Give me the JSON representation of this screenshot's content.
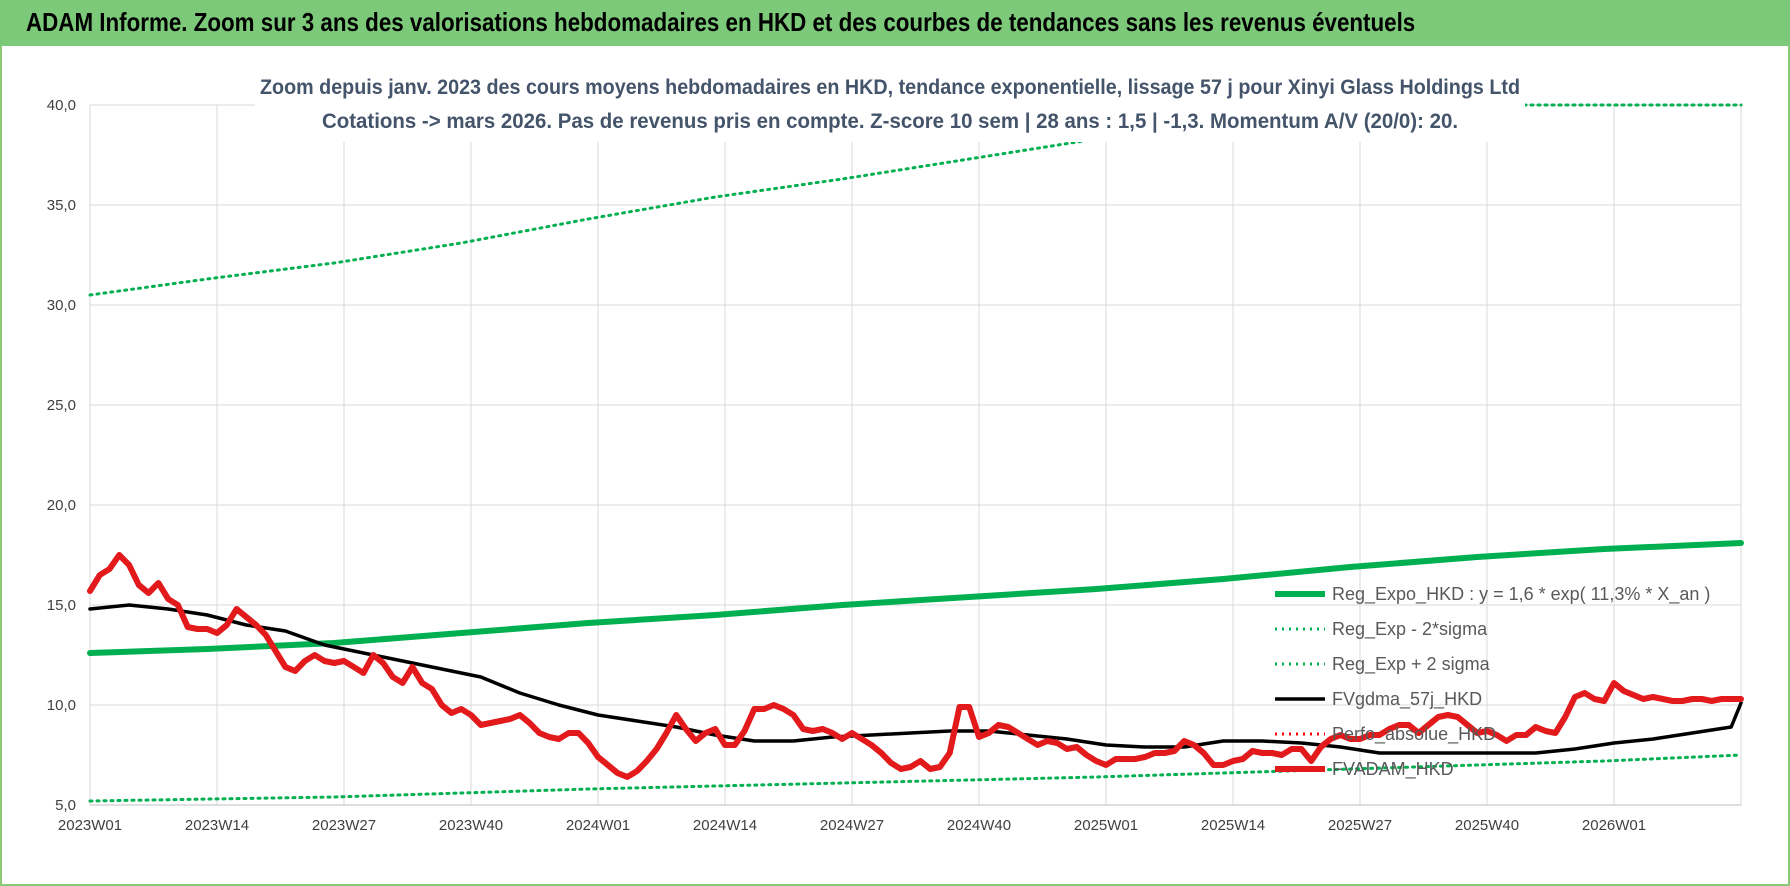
{
  "header": {
    "title": "ADAM Informe. Zoom sur 3 ans des valorisations hebdomadaires en HKD et des courbes de tendances sans les revenus éventuels"
  },
  "colors": {
    "header_bg": "#7dc97a",
    "trend": "#00b050",
    "sigma": "#00b050",
    "fvgdma": "#000000",
    "perfo": "#ff0000",
    "fvadam": "#e31a1c",
    "grid": "#d9d9d9"
  },
  "chart_data": {
    "type": "line",
    "subtitle": [
      "Zoom depuis janv. 2023 des cours moyens hebdomadaires en HKD, tendance exponentielle, lissage 57 j pour Xinyi Glass Holdings Ltd",
      "Cotations -> mars 2026. Pas de revenus pris en compte. Z-score 10 sem | 28 ans : 1,5 | -1,3. Momentum A/V (20/0): 20."
    ],
    "ylim": [
      5,
      40
    ],
    "y_ticks": [
      "5,0",
      "10,0",
      "15,0",
      "20,0",
      "25,0",
      "30,0",
      "35,0",
      "40,0"
    ],
    "x_ticks": [
      "2023W01",
      "2023W14",
      "2023W27",
      "2023W40",
      "2024W01",
      "2024W14",
      "2024W27",
      "2024W40",
      "2025W01",
      "2025W14",
      "2025W27",
      "2025W40",
      "2026W01"
    ],
    "x_count": 170,
    "grid": true,
    "legend_position": "bottom-right",
    "series": [
      {
        "name": "Reg_Expo_HKD : y = 1,6 * exp( 11,3% *  X_an )",
        "color": "#00b050",
        "style": "solid-thick",
        "points": [
          [
            0,
            12.6
          ],
          [
            12,
            12.8
          ],
          [
            25,
            13.1
          ],
          [
            38,
            13.6
          ],
          [
            51,
            14.1
          ],
          [
            64,
            14.5
          ],
          [
            77,
            15.0
          ],
          [
            90,
            15.4
          ],
          [
            103,
            15.8
          ],
          [
            116,
            16.3
          ],
          [
            129,
            16.9
          ],
          [
            142,
            17.4
          ],
          [
            155,
            17.8
          ],
          [
            169,
            18.1
          ]
        ]
      },
      {
        "name": "Reg_Exp - 2*sigma",
        "color": "#00b050",
        "style": "dotted",
        "points": [
          [
            0,
            5.2
          ],
          [
            25,
            5.4
          ],
          [
            51,
            5.8
          ],
          [
            77,
            6.1
          ],
          [
            103,
            6.4
          ],
          [
            129,
            6.8
          ],
          [
            155,
            7.2
          ],
          [
            169,
            7.5
          ]
        ]
      },
      {
        "name": "Reg_Exp + 2 sigma",
        "color": "#00b050",
        "style": "dotted",
        "points": [
          [
            0,
            30.5
          ],
          [
            12,
            31.3
          ],
          [
            25,
            32.1
          ],
          [
            38,
            33.1
          ],
          [
            51,
            34.3
          ],
          [
            64,
            35.4
          ],
          [
            77,
            36.3
          ],
          [
            90,
            37.3
          ],
          [
            103,
            38.3
          ],
          [
            116,
            39.3
          ],
          [
            124,
            40.0
          ],
          [
            169,
            40.0
          ]
        ]
      },
      {
        "name": "FVgdma_57j_HKD",
        "color": "#000000",
        "style": "solid",
        "points": [
          [
            0,
            14.8
          ],
          [
            4,
            15.0
          ],
          [
            8,
            14.8
          ],
          [
            12,
            14.5
          ],
          [
            16,
            14.0
          ],
          [
            20,
            13.7
          ],
          [
            24,
            13.0
          ],
          [
            28,
            12.6
          ],
          [
            32,
            12.2
          ],
          [
            36,
            11.8
          ],
          [
            40,
            11.4
          ],
          [
            44,
            10.6
          ],
          [
            48,
            10.0
          ],
          [
            52,
            9.5
          ],
          [
            56,
            9.2
          ],
          [
            60,
            8.9
          ],
          [
            64,
            8.5
          ],
          [
            68,
            8.2
          ],
          [
            72,
            8.2
          ],
          [
            76,
            8.4
          ],
          [
            80,
            8.5
          ],
          [
            84,
            8.6
          ],
          [
            88,
            8.7
          ],
          [
            92,
            8.7
          ],
          [
            96,
            8.5
          ],
          [
            100,
            8.3
          ],
          [
            104,
            8.0
          ],
          [
            108,
            7.9
          ],
          [
            112,
            7.9
          ],
          [
            116,
            8.2
          ],
          [
            120,
            8.2
          ],
          [
            124,
            8.1
          ],
          [
            128,
            7.9
          ],
          [
            132,
            7.6
          ],
          [
            136,
            7.6
          ],
          [
            140,
            7.6
          ],
          [
            144,
            7.6
          ],
          [
            148,
            7.6
          ],
          [
            152,
            7.8
          ],
          [
            156,
            8.1
          ],
          [
            160,
            8.3
          ],
          [
            164,
            8.6
          ],
          [
            168,
            8.9
          ],
          [
            172,
            9.0
          ],
          [
            176,
            9.2
          ],
          [
            178,
            9.5
          ],
          [
            182,
            10.0
          ],
          [
            186,
            10.1
          ],
          [
            169,
            10.1
          ]
        ]
      },
      {
        "name": "Perfo_absolue_HKD",
        "color": "#ff0000",
        "style": "dotted",
        "points": []
      },
      {
        "name": "FVADAM_HKD",
        "color": "#e31a1c",
        "style": "solid-thick",
        "points": [
          [
            0,
            15.7
          ],
          [
            1,
            16.5
          ],
          [
            2,
            16.8
          ],
          [
            3,
            17.5
          ],
          [
            4,
            17.0
          ],
          [
            5,
            16.0
          ],
          [
            6,
            15.6
          ],
          [
            7,
            16.1
          ],
          [
            8,
            15.3
          ],
          [
            9,
            15.0
          ],
          [
            10,
            13.9
          ],
          [
            11,
            13.8
          ],
          [
            12,
            13.8
          ],
          [
            13,
            13.6
          ],
          [
            14,
            14.0
          ],
          [
            15,
            14.8
          ],
          [
            16,
            14.4
          ],
          [
            17,
            14.0
          ],
          [
            18,
            13.5
          ],
          [
            19,
            12.7
          ],
          [
            20,
            11.9
          ],
          [
            21,
            11.7
          ],
          [
            22,
            12.2
          ],
          [
            23,
            12.5
          ],
          [
            24,
            12.2
          ],
          [
            25,
            12.1
          ],
          [
            26,
            12.2
          ],
          [
            27,
            11.9
          ],
          [
            28,
            11.6
          ],
          [
            29,
            12.5
          ],
          [
            30,
            12.1
          ],
          [
            31,
            11.4
          ],
          [
            32,
            11.1
          ],
          [
            33,
            11.9
          ],
          [
            34,
            11.1
          ],
          [
            35,
            10.8
          ],
          [
            36,
            10.0
          ],
          [
            37,
            9.6
          ],
          [
            38,
            9.8
          ],
          [
            39,
            9.5
          ],
          [
            40,
            9.0
          ],
          [
            41,
            9.1
          ],
          [
            42,
            9.2
          ],
          [
            43,
            9.3
          ],
          [
            44,
            9.5
          ],
          [
            45,
            9.1
          ],
          [
            46,
            8.6
          ],
          [
            47,
            8.4
          ],
          [
            48,
            8.3
          ],
          [
            49,
            8.6
          ],
          [
            50,
            8.6
          ],
          [
            51,
            8.1
          ],
          [
            52,
            7.4
          ],
          [
            53,
            7.0
          ],
          [
            54,
            6.6
          ],
          [
            55,
            6.4
          ],
          [
            56,
            6.7
          ],
          [
            57,
            7.2
          ],
          [
            58,
            7.8
          ],
          [
            59,
            8.6
          ],
          [
            60,
            9.5
          ],
          [
            61,
            8.8
          ],
          [
            62,
            8.2
          ],
          [
            63,
            8.6
          ],
          [
            64,
            8.8
          ],
          [
            65,
            8.0
          ],
          [
            66,
            8.0
          ],
          [
            67,
            8.7
          ],
          [
            68,
            9.8
          ],
          [
            69,
            9.8
          ],
          [
            70,
            10.0
          ],
          [
            71,
            9.8
          ],
          [
            72,
            9.5
          ],
          [
            73,
            8.8
          ],
          [
            74,
            8.7
          ],
          [
            75,
            8.8
          ],
          [
            76,
            8.6
          ],
          [
            77,
            8.3
          ],
          [
            78,
            8.6
          ],
          [
            79,
            8.3
          ],
          [
            80,
            8.0
          ],
          [
            81,
            7.6
          ],
          [
            82,
            7.1
          ],
          [
            83,
            6.8
          ],
          [
            84,
            6.9
          ],
          [
            85,
            7.2
          ],
          [
            86,
            6.8
          ],
          [
            87,
            6.9
          ],
          [
            88,
            7.6
          ],
          [
            89,
            9.9
          ],
          [
            90,
            9.9
          ],
          [
            91,
            8.4
          ],
          [
            92,
            8.6
          ],
          [
            93,
            9.0
          ],
          [
            94,
            8.9
          ],
          [
            95,
            8.6
          ],
          [
            96,
            8.3
          ],
          [
            97,
            8.0
          ],
          [
            98,
            8.2
          ],
          [
            99,
            8.1
          ],
          [
            100,
            7.8
          ],
          [
            101,
            7.9
          ],
          [
            102,
            7.5
          ],
          [
            103,
            7.2
          ],
          [
            104,
            7.0
          ],
          [
            105,
            7.3
          ],
          [
            106,
            7.3
          ],
          [
            107,
            7.3
          ],
          [
            108,
            7.4
          ],
          [
            109,
            7.6
          ],
          [
            110,
            7.6
          ],
          [
            111,
            7.7
          ],
          [
            112,
            8.2
          ],
          [
            113,
            8.0
          ],
          [
            114,
            7.6
          ],
          [
            115,
            7.0
          ],
          [
            116,
            7.0
          ],
          [
            117,
            7.2
          ],
          [
            118,
            7.3
          ],
          [
            119,
            7.7
          ],
          [
            120,
            7.6
          ],
          [
            121,
            7.6
          ],
          [
            122,
            7.5
          ],
          [
            123,
            7.8
          ],
          [
            124,
            7.8
          ],
          [
            125,
            7.2
          ],
          [
            126,
            7.9
          ],
          [
            127,
            8.3
          ],
          [
            128,
            8.5
          ],
          [
            129,
            8.3
          ],
          [
            130,
            8.3
          ],
          [
            131,
            8.5
          ],
          [
            132,
            8.5
          ],
          [
            133,
            8.8
          ],
          [
            134,
            9.0
          ],
          [
            135,
            9.0
          ],
          [
            136,
            8.6
          ],
          [
            137,
            9.0
          ],
          [
            138,
            9.4
          ],
          [
            139,
            9.5
          ],
          [
            140,
            9.4
          ],
          [
            141,
            9.0
          ],
          [
            142,
            8.6
          ],
          [
            143,
            8.7
          ],
          [
            144,
            8.5
          ],
          [
            145,
            8.2
          ],
          [
            146,
            8.5
          ],
          [
            147,
            8.5
          ],
          [
            148,
            8.9
          ],
          [
            149,
            8.7
          ],
          [
            150,
            8.6
          ],
          [
            151,
            9.4
          ],
          [
            152,
            10.4
          ],
          [
            153,
            10.6
          ],
          [
            154,
            10.3
          ],
          [
            155,
            10.2
          ],
          [
            156,
            11.1
          ],
          [
            157,
            10.7
          ],
          [
            158,
            10.5
          ],
          [
            159,
            10.3
          ],
          [
            160,
            10.4
          ],
          [
            161,
            10.3
          ],
          [
            162,
            10.2
          ],
          [
            163,
            10.2
          ],
          [
            164,
            10.3
          ],
          [
            165,
            10.3
          ],
          [
            166,
            10.2
          ],
          [
            167,
            10.3
          ],
          [
            168,
            10.3
          ],
          [
            169,
            10.3
          ]
        ]
      }
    ]
  }
}
